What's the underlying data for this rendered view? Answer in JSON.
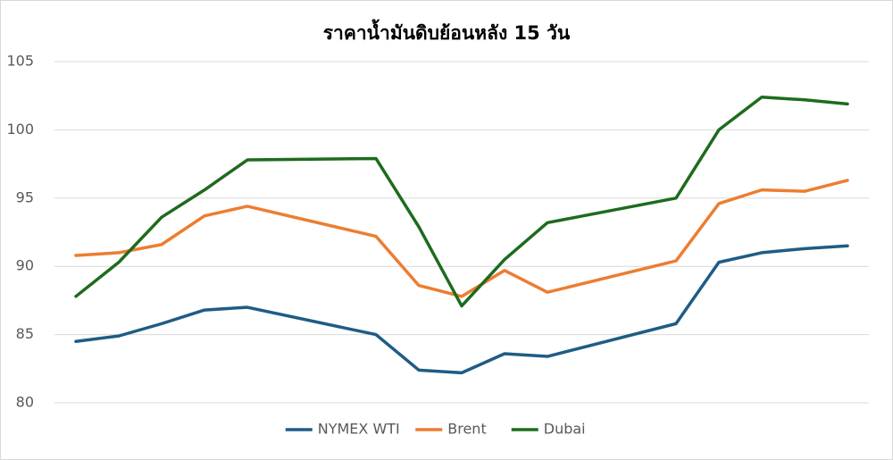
{
  "chart_data": {
    "type": "line",
    "title": "ราคาน้ำมันดิบย้อนหลัง 15 วัน",
    "x": [
      0,
      1,
      2,
      3,
      4,
      7,
      8,
      9,
      10,
      11,
      14,
      15,
      16,
      17,
      18
    ],
    "xlim": [
      -0.5,
      18.5
    ],
    "ylim": [
      80,
      105
    ],
    "yticks": [
      80,
      85,
      90,
      95,
      100,
      105
    ],
    "grid": true,
    "legend": "bottom",
    "series": [
      {
        "name": "NYMEX WTI",
        "color": "#1f5c85",
        "values": [
          84.5,
          84.9,
          85.8,
          86.8,
          87.0,
          85.0,
          82.4,
          82.2,
          83.6,
          83.4,
          85.8,
          90.3,
          91.0,
          91.3,
          91.5
        ]
      },
      {
        "name": "Brent",
        "color": "#ed7d31",
        "values": [
          90.8,
          91.0,
          91.6,
          93.7,
          94.4,
          92.2,
          88.6,
          87.8,
          89.7,
          88.1,
          90.4,
          94.6,
          95.6,
          95.5,
          96.3
        ]
      },
      {
        "name": "Dubai",
        "color": "#1e6b1e",
        "values": [
          87.8,
          90.3,
          93.6,
          95.6,
          97.8,
          97.9,
          92.9,
          87.1,
          90.5,
          93.2,
          95.0,
          100.0,
          102.4,
          102.2,
          101.9
        ]
      }
    ]
  }
}
